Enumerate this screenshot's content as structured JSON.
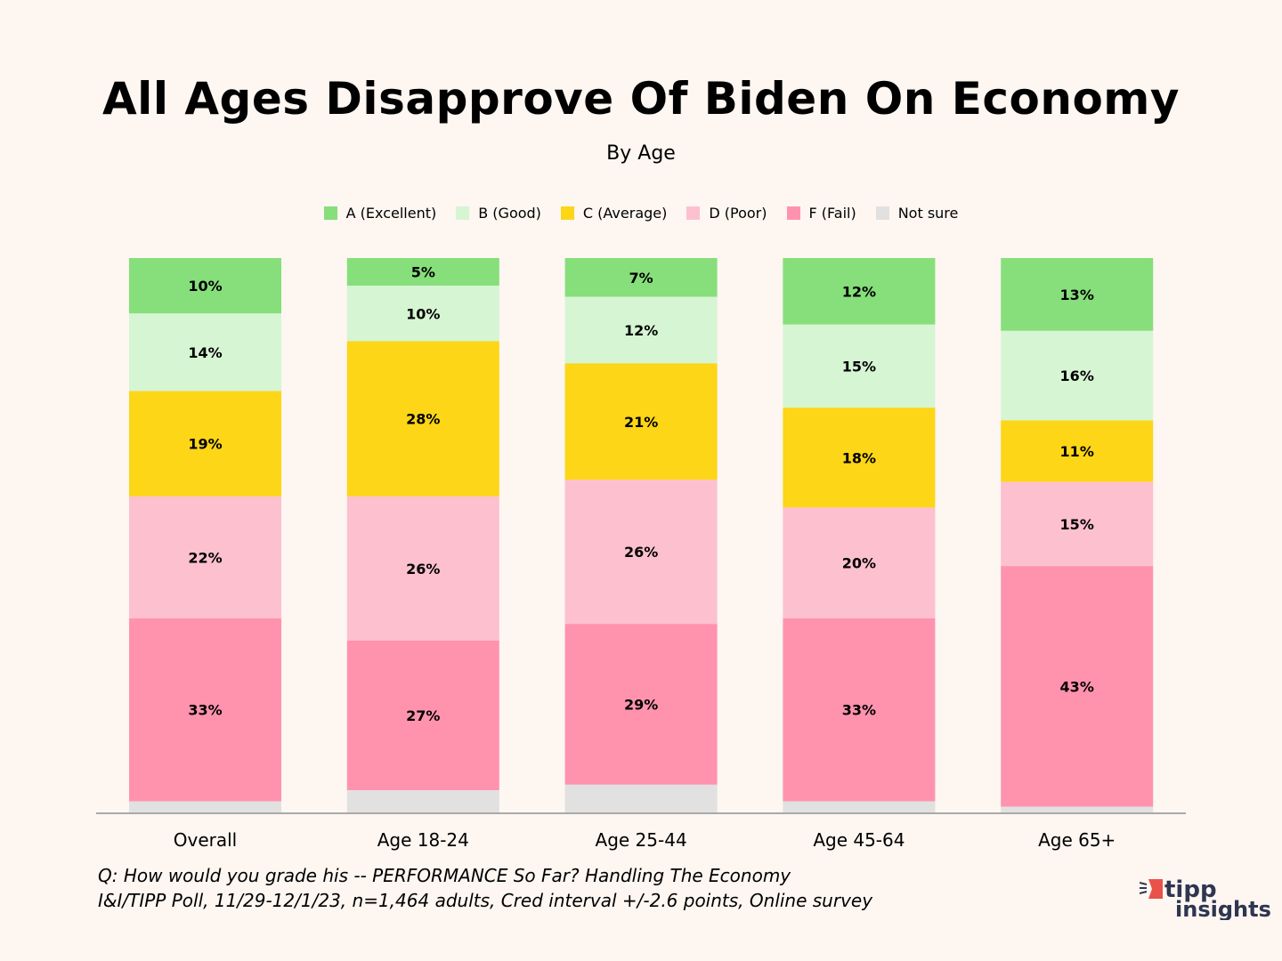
{
  "chart_data": {
    "type": "bar",
    "stacked": true,
    "title": "All Ages Disapprove Of Biden On Economy",
    "subtitle": "By Age",
    "categories": [
      "Overall",
      "Age 18-24",
      "Age 25-44",
      "Age 45-64",
      "Age 65+"
    ],
    "series": [
      {
        "name": "A (Excellent)",
        "color": "#86df7a",
        "values": [
          10,
          5,
          7,
          12,
          13
        ],
        "labels": [
          "10%",
          "5%",
          "7%",
          "12%",
          "13%"
        ]
      },
      {
        "name": "B (Good)",
        "color": "#d6f5d3",
        "values": [
          14,
          10,
          12,
          15,
          16
        ],
        "labels": [
          "14%",
          "10%",
          "12%",
          "15%",
          "16%"
        ]
      },
      {
        "name": "C (Average)",
        "color": "#fcd617",
        "values": [
          19,
          28,
          21,
          18,
          11
        ],
        "labels": [
          "19%",
          "28%",
          "21%",
          "18%",
          "11%"
        ]
      },
      {
        "name": "D (Poor)",
        "color": "#fdc0cf",
        "values": [
          22,
          26,
          26,
          20,
          15
        ],
        "labels": [
          "22%",
          "26%",
          "26%",
          "20%",
          "15%"
        ]
      },
      {
        "name": "F (Fail)",
        "color": "#ff93ae",
        "values": [
          33,
          27,
          29,
          33,
          43
        ],
        "labels": [
          "33%",
          "27%",
          "29%",
          "33%",
          "43%"
        ]
      },
      {
        "name": "Not sure",
        "color": "#e1e1e1",
        "values": [
          2,
          4,
          5,
          2,
          1
        ]
      }
    ],
    "ylim": [
      0,
      100
    ],
    "grid": false,
    "legend_placement": "top"
  },
  "footer": {
    "question": "Q:  How would you grade his -- PERFORMANCE So Far? Handling The Economy",
    "source": "I&I/TIPP Poll, 11/29-12/1/23, n=1,464 adults, Cred interval +/-2.6 points, Online survey"
  },
  "logo": {
    "text": "tipp insights",
    "color": "#2e3650",
    "accent": "#e8524a"
  }
}
